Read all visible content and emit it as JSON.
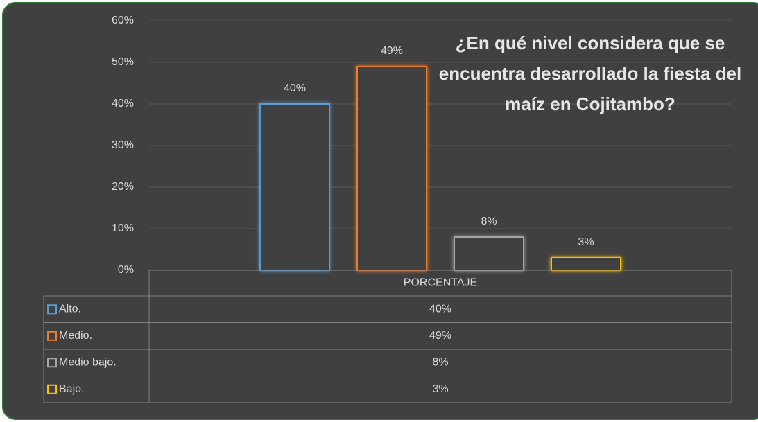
{
  "chart_data": {
    "type": "bar",
    "title": "¿En qué nivel considera que se encuentra desarrollado la fiesta del maíz en Cojitambo?",
    "categories": [
      "PORCENTAJE"
    ],
    "series": [
      {
        "name": "Alto.",
        "color": "#5b9bd5",
        "values": [
          40
        ],
        "value_labels": [
          "40%"
        ]
      },
      {
        "name": "Medio.",
        "color": "#ed7d31",
        "values": [
          49
        ],
        "value_labels": [
          "49%"
        ]
      },
      {
        "name": "Medio bajo.",
        "color": "#a5a5a5",
        "values": [
          8
        ],
        "value_labels": [
          "8%"
        ]
      },
      {
        "name": "Bajo.",
        "color": "#ffc000",
        "values": [
          3
        ],
        "value_labels": [
          "3%"
        ]
      }
    ],
    "ylim": [
      0,
      60
    ],
    "yticks": [
      {
        "value": 0,
        "label": "0%"
      },
      {
        "value": 10,
        "label": "10%"
      },
      {
        "value": 20,
        "label": "20%"
      },
      {
        "value": 30,
        "label": "30%"
      },
      {
        "value": 40,
        "label": "40%"
      },
      {
        "value": 50,
        "label": "50%"
      },
      {
        "value": 60,
        "label": "60%"
      }
    ],
    "grid": true,
    "data_table": true
  }
}
